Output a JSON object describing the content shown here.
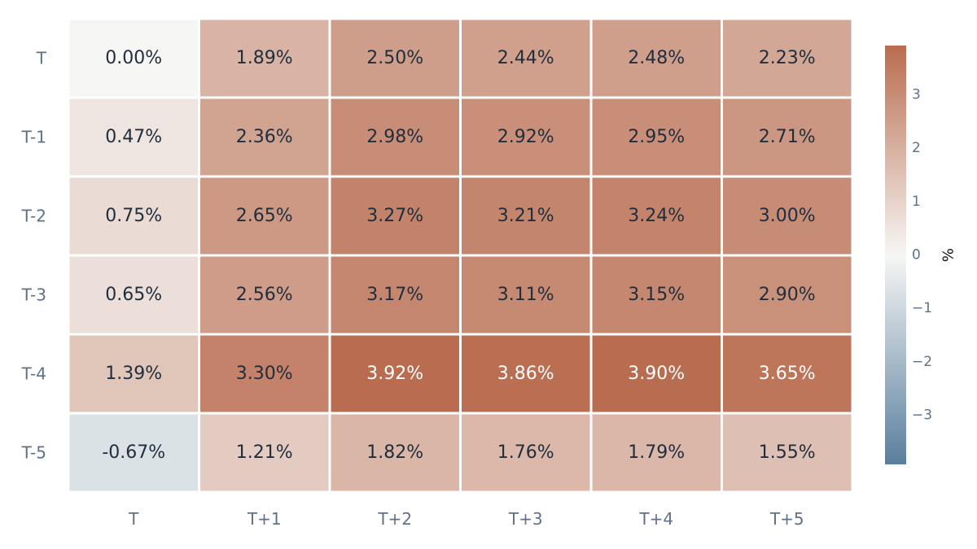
{
  "chart_data": {
    "type": "heatmap",
    "title": "",
    "xlabel": "",
    "ylabel": "",
    "x_categories": [
      "T",
      "T+1",
      "T+2",
      "T+3",
      "T+4",
      "T+5"
    ],
    "y_categories": [
      "T",
      "T-1",
      "T-2",
      "T-3",
      "T-4",
      "T-5"
    ],
    "values": [
      [
        0.0,
        1.89,
        2.5,
        2.44,
        2.48,
        2.23
      ],
      [
        0.47,
        2.36,
        2.98,
        2.92,
        2.95,
        2.71
      ],
      [
        0.75,
        2.65,
        3.27,
        3.21,
        3.24,
        3.0
      ],
      [
        0.65,
        2.56,
        3.17,
        3.11,
        3.15,
        2.9
      ],
      [
        1.39,
        3.3,
        3.92,
        3.86,
        3.9,
        3.65
      ],
      [
        -0.67,
        1.21,
        1.82,
        1.76,
        1.79,
        1.55
      ]
    ],
    "cell_labels": [
      [
        "0.00%",
        "1.89%",
        "2.50%",
        "2.44%",
        "2.48%",
        "2.23%"
      ],
      [
        "0.47%",
        "2.36%",
        "2.98%",
        "2.92%",
        "2.95%",
        "2.71%"
      ],
      [
        "0.75%",
        "2.65%",
        "3.27%",
        "3.21%",
        "3.24%",
        "3.00%"
      ],
      [
        "0.65%",
        "2.56%",
        "3.17%",
        "3.11%",
        "3.15%",
        "2.90%"
      ],
      [
        "1.39%",
        "3.30%",
        "3.92%",
        "3.86%",
        "3.90%",
        "3.65%"
      ],
      [
        "-0.67%",
        "1.21%",
        "1.82%",
        "1.76%",
        "1.79%",
        "1.55%"
      ]
    ],
    "colorscale": {
      "type": "diverging",
      "range": [
        -3.92,
        3.92
      ],
      "low_color": "#5a7f9e",
      "mid_color": "#f6f6f4",
      "high_color": "#b96c4f"
    },
    "colorbar": {
      "title": "%",
      "ticks": [
        3,
        2,
        1,
        0,
        -1,
        -2,
        -3
      ],
      "tick_labels": [
        "3",
        "2",
        "1",
        "0",
        "−1",
        "−2",
        "−3"
      ],
      "position": "right"
    },
    "text_colors": {
      "dark": "#1f2d3d",
      "light": "#ffffff"
    },
    "grid": false,
    "legend": "none"
  }
}
